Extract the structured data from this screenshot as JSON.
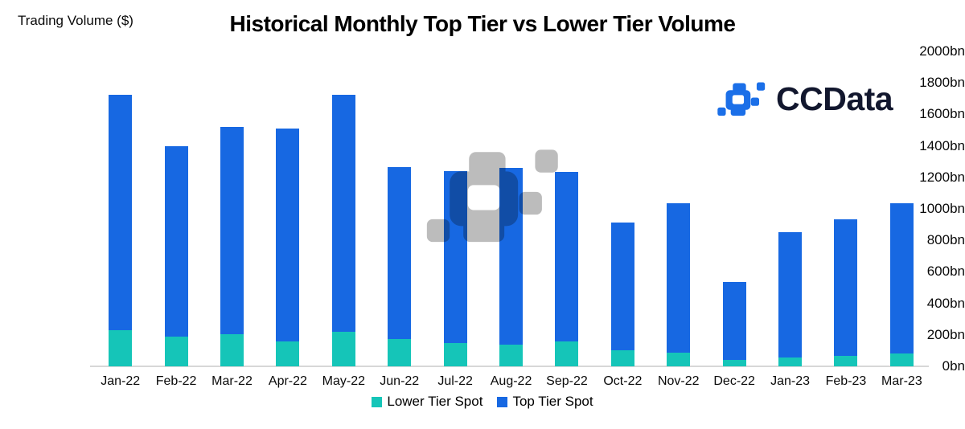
{
  "header": {
    "axis_title": "Trading Volume ($)"
  },
  "chart_data": {
    "type": "bar",
    "stacked": true,
    "title": "Historical Monthly Top Tier vs Lower Tier Volume",
    "ylabel": "Trading Volume ($)",
    "xlabel": "",
    "categories": [
      "Jan-22",
      "Feb-22",
      "Mar-22",
      "Apr-22",
      "May-22",
      "Jun-22",
      "Jul-22",
      "Aug-22",
      "Sep-22",
      "Oct-22",
      "Nov-22",
      "Dec-22",
      "Jan-23",
      "Feb-23",
      "Mar-23"
    ],
    "series": [
      {
        "name": "Lower Tier Spot",
        "color": "#15C5B8",
        "values": [
          230,
          190,
          205,
          160,
          220,
          175,
          150,
          140,
          160,
          100,
          85,
          40,
          55,
          65,
          80
        ]
      },
      {
        "name": "Top Tier Spot",
        "color": "#1768E2",
        "values": [
          1495,
          1210,
          1315,
          1350,
          1505,
          1090,
          1090,
          1120,
          1075,
          815,
          950,
          495,
          795,
          870,
          955
        ]
      }
    ],
    "totals": [
      1725,
      1400,
      1520,
      1510,
      1725,
      1265,
      1240,
      1260,
      1235,
      915,
      1035,
      535,
      850,
      935,
      1035
    ],
    "ylim": [
      0,
      2000
    ],
    "ytick_step": 200,
    "yticks": [
      {
        "label": "0bn",
        "value": 0
      },
      {
        "label": "200bn",
        "value": 200
      },
      {
        "label": "400bn",
        "value": 400
      },
      {
        "label": "600bn",
        "value": 600
      },
      {
        "label": "800bn",
        "value": 800
      },
      {
        "label": "1000bn",
        "value": 1000
      },
      {
        "label": "1200bn",
        "value": 1200
      },
      {
        "label": "1400bn",
        "value": 1400
      },
      {
        "label": "1600bn",
        "value": 1600
      },
      {
        "label": "1800bn",
        "value": 1800
      },
      {
        "label": "2000bn",
        "value": 2000
      }
    ],
    "grid": false,
    "legend_position": "bottom"
  },
  "brand": {
    "name": "CCData",
    "mark_color": "#1B6FE8",
    "text_color": "#12172E"
  },
  "watermark": {
    "icon": "ccdata-pixel-mark",
    "color": "#BCBCBC"
  },
  "axis": {
    "line_color": "#D7D7D7"
  }
}
